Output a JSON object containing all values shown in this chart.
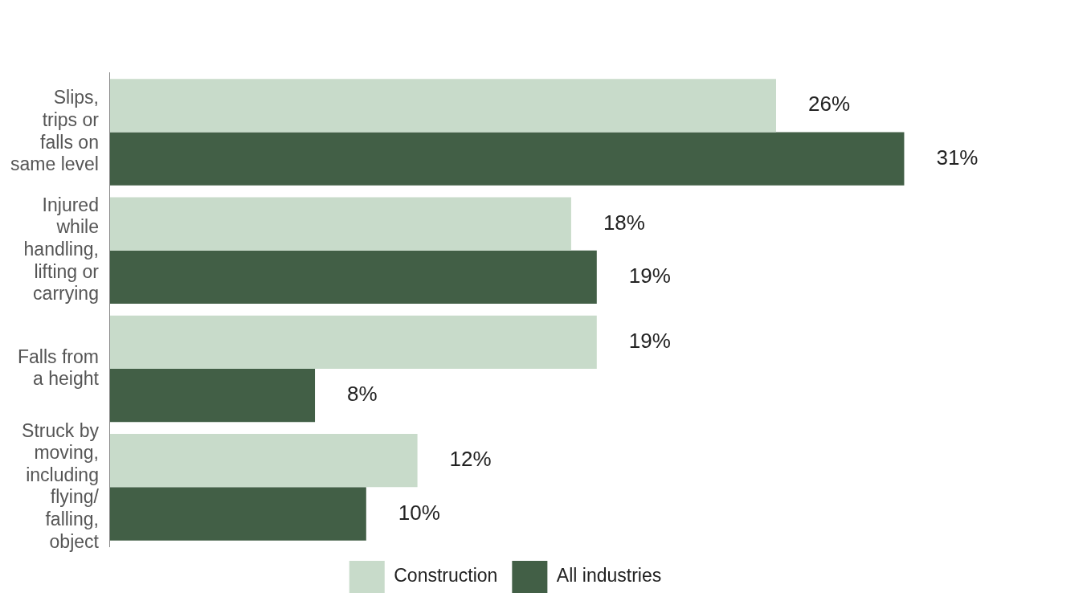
{
  "chart_data": {
    "type": "bar",
    "orientation": "horizontal",
    "categories": [
      "Slips, trips or falls on same level",
      "Injured while handling, lifting or carrying",
      "Falls from a height",
      "Struck by moving, including flying/ falling, object"
    ],
    "series": [
      {
        "name": "Construction",
        "color": "#c8dbca",
        "values": [
          26,
          18,
          19,
          12
        ],
        "value_labels": [
          "26%",
          "18%",
          "19%",
          "12%"
        ]
      },
      {
        "name": "All industries",
        "color": "#425f46",
        "values": [
          31,
          19,
          8,
          10
        ],
        "value_labels": [
          "31%",
          "19%",
          "8%",
          "10%"
        ]
      }
    ],
    "grid": false,
    "legend": "bottom",
    "tick_labels": "y"
  }
}
